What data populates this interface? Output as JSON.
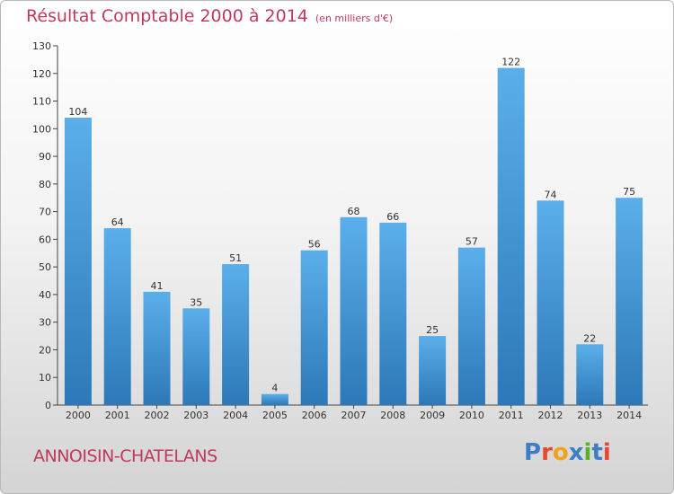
{
  "header": {
    "title": "Résultat Comptable 2000 à 2014",
    "subtitle": "(en milliers d'€)"
  },
  "footer": {
    "commune": "ANNOISIN-CHATELANS",
    "logo_letters": [
      "P",
      "r",
      "o",
      "x",
      "i",
      "t",
      "i"
    ]
  },
  "colors": {
    "title": "#c03a5c",
    "bar_top": "#5aafea",
    "bar_bottom": "#2d78b8",
    "logo": [
      "#3c7fc4",
      "#e64a2e",
      "#f2a21b",
      "#3c7fc4",
      "#58b12d",
      "#3c7fc4",
      "#e64a2e"
    ]
  },
  "chart_data": {
    "type": "bar",
    "title": "Résultat Comptable 2000 à 2014",
    "subtitle": "(en milliers d'€)",
    "categories": [
      "2000",
      "2001",
      "2002",
      "2003",
      "2004",
      "2005",
      "2006",
      "2007",
      "2008",
      "2009",
      "2010",
      "2011",
      "2012",
      "2013",
      "2014"
    ],
    "values": [
      104,
      64,
      41,
      35,
      51,
      4,
      56,
      68,
      66,
      25,
      57,
      122,
      74,
      22,
      75
    ],
    "ylim": [
      0,
      130
    ],
    "yticks": [
      0,
      10,
      20,
      30,
      40,
      50,
      60,
      70,
      80,
      90,
      100,
      110,
      120,
      130
    ],
    "grid": false,
    "legend": "none"
  }
}
